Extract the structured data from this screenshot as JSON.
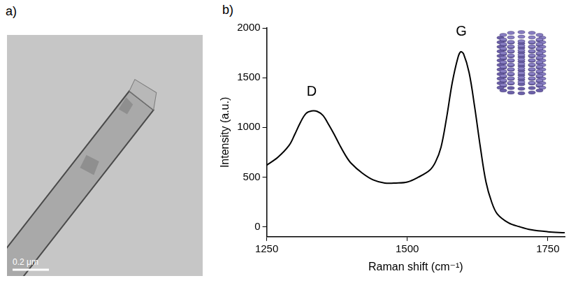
{
  "chart_data": {
    "type": "line",
    "panel_label": "b)",
    "x_label": "Raman shift (cm⁻¹)",
    "y_label": "Intensity (a.u.)",
    "x": [
      1250,
      1270,
      1290,
      1300,
      1310,
      1320,
      1330,
      1340,
      1350,
      1360,
      1370,
      1380,
      1390,
      1400,
      1420,
      1440,
      1460,
      1480,
      1500,
      1520,
      1540,
      1550,
      1560,
      1570,
      1580,
      1590,
      1595,
      1600,
      1610,
      1620,
      1630,
      1640,
      1650,
      1660,
      1680,
      1700,
      1720,
      1750,
      1780
    ],
    "values": [
      620,
      700,
      820,
      930,
      1050,
      1140,
      1165,
      1160,
      1120,
      1030,
      930,
      820,
      720,
      640,
      540,
      470,
      440,
      440,
      450,
      500,
      570,
      650,
      800,
      1100,
      1450,
      1700,
      1760,
      1740,
      1550,
      1200,
      800,
      450,
      250,
      130,
      40,
      0,
      -30,
      -50,
      -60
    ],
    "color": "#000000",
    "xlim": [
      1250,
      1780
    ],
    "xticks": [
      1250,
      1500,
      1750
    ],
    "ylim": [
      -100,
      2000
    ],
    "yticks": [
      0,
      500,
      1000,
      1500,
      2000
    ],
    "grid": false,
    "annotations": [
      {
        "text": "D",
        "x": 1330,
        "y": 1290
      },
      {
        "text": "G",
        "x": 1596,
        "y": 1890
      }
    ]
  },
  "image_panel": {
    "panel_label": "a)",
    "scale_bar": "0.2 μm"
  }
}
